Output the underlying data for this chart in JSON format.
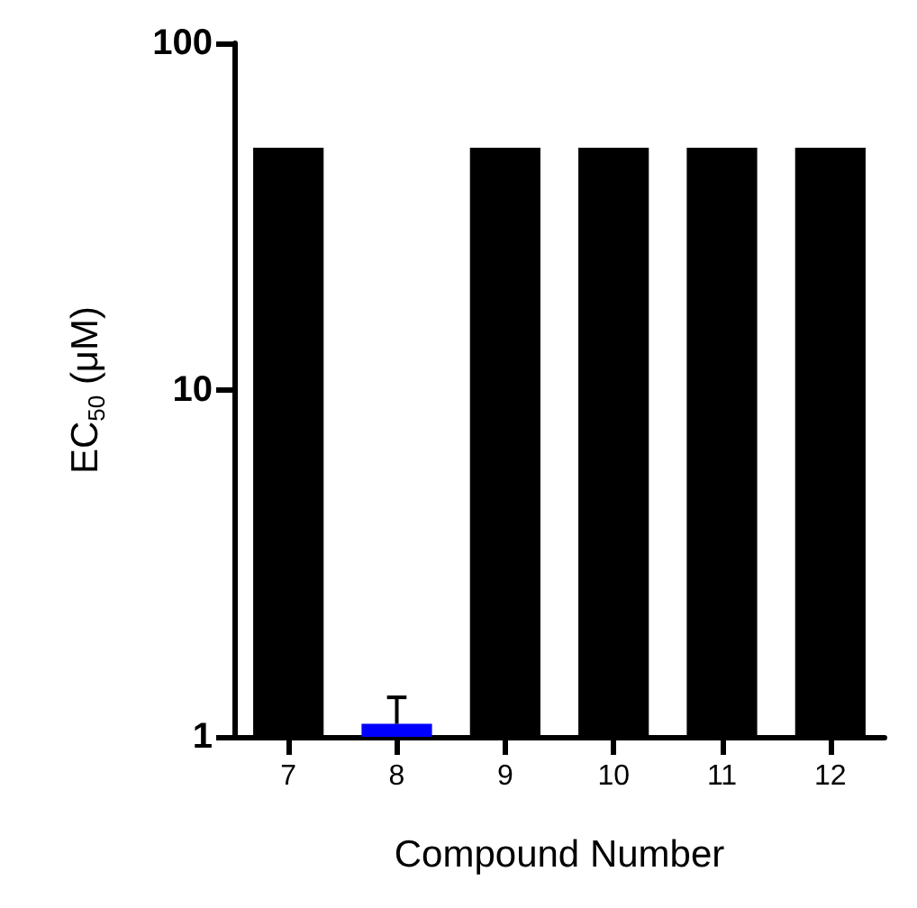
{
  "chart_data": {
    "type": "bar",
    "xlabel": "Compound Number",
    "ylabel": "EC$_{50}$ (μM)",
    "categories": [
      "7",
      "8",
      "9",
      "10",
      "11",
      "12"
    ],
    "values": [
      50,
      1.09,
      50,
      50,
      50,
      50
    ],
    "colors": [
      "#000000",
      "#0000ff",
      "#000000",
      "#000000",
      "#000000",
      "#000000"
    ],
    "errors": [
      null,
      [
        1.09,
        1.3
      ],
      null,
      null,
      null,
      null
    ],
    "log": "y",
    "ylim": [
      1,
      100
    ],
    "yticks": [
      1,
      10,
      100
    ]
  }
}
